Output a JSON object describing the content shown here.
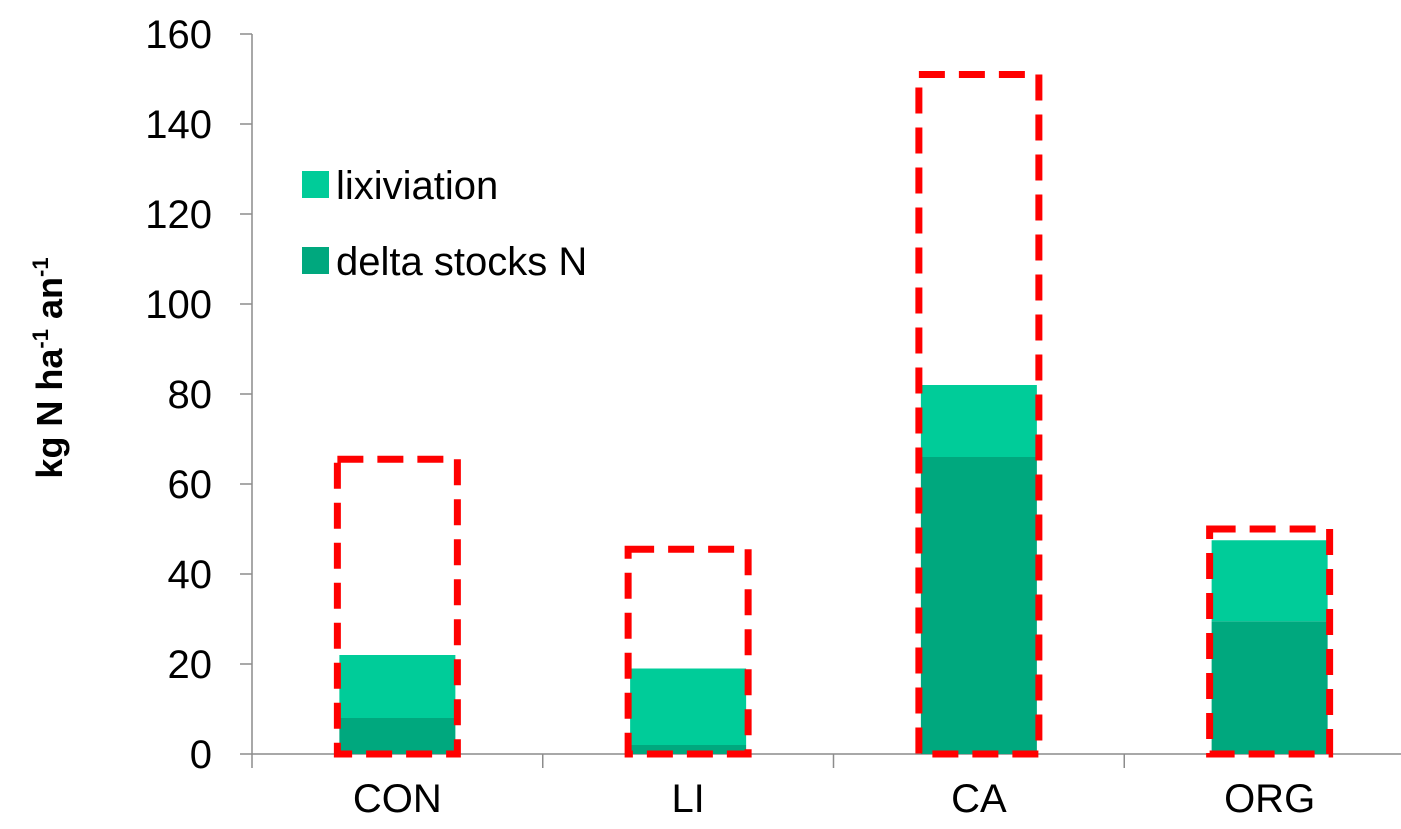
{
  "chart_data": {
    "type": "bar",
    "stacked": true,
    "categories": [
      "CON",
      "LI",
      "CA",
      "ORG"
    ],
    "series": [
      {
        "name": "delta stocks N",
        "values": [
          8,
          2,
          66,
          29.5
        ],
        "color": "#00A87E"
      },
      {
        "name": "lixiviation",
        "values": [
          14,
          17,
          16,
          18
        ],
        "color": "#00CC99"
      }
    ],
    "outlines": {
      "values": [
        65.5,
        45.5,
        151,
        50
      ],
      "color": "#FF0000",
      "style": "dashed"
    },
    "ylabel": {
      "parts": [
        {
          "text": "kg N ha",
          "sup": false
        },
        {
          "text": "-1",
          "sup": true
        },
        {
          "text": " an",
          "sup": false
        },
        {
          "text": "-1",
          "sup": true
        }
      ]
    },
    "ylim": [
      0,
      160
    ],
    "yticks": [
      "0",
      "20",
      "40",
      "60",
      "80",
      "100",
      "120",
      "140",
      "160"
    ],
    "legend": {
      "placement": "top-left",
      "items": [
        {
          "label": "lixiviation",
          "color": "#00CC99"
        },
        {
          "label": "delta stocks N",
          "color": "#00A87E"
        }
      ]
    },
    "grid": false
  }
}
